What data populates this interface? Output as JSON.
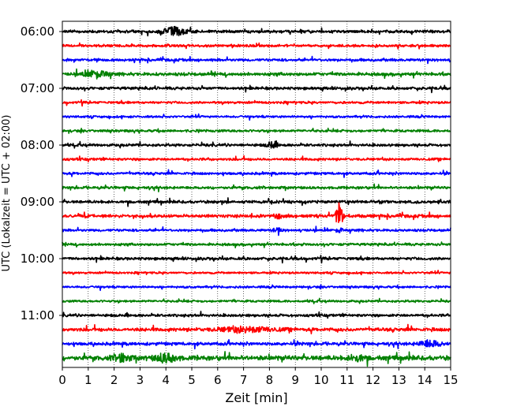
{
  "chart_data": {
    "type": "line",
    "subtype": "helicorder",
    "xlabel": "Zeit  [min]",
    "ylabel": "UTC (Lokalzeit = UTC + 02:00)",
    "xlim": [
      0,
      15
    ],
    "x_ticks": [
      0,
      1,
      2,
      3,
      4,
      5,
      6,
      7,
      8,
      9,
      10,
      11,
      12,
      13,
      14,
      15
    ],
    "x_tick_labels": [
      "0",
      "1",
      "2",
      "3",
      "4",
      "5",
      "6",
      "7",
      "8",
      "9",
      "10",
      "11",
      "12",
      "13",
      "14",
      "15"
    ],
    "y_tick_labels": [
      "06:00",
      "07:00",
      "08:00",
      "09:00",
      "10:00",
      "11:00"
    ],
    "traces_per_hour": 4,
    "minutes_per_trace": 15,
    "vertical_grid": "dotted",
    "trace_colors": [
      "#000000",
      "#ff0000",
      "#0000ff",
      "#008000"
    ],
    "trace_start_times": [
      "06:00",
      "06:15",
      "06:30",
      "06:45",
      "07:00",
      "07:15",
      "07:30",
      "07:45",
      "08:00",
      "08:15",
      "08:30",
      "08:45",
      "09:00",
      "09:15",
      "09:30",
      "09:45",
      "10:00",
      "10:15",
      "10:30",
      "10:45",
      "11:00",
      "11:15",
      "11:30",
      "11:45"
    ],
    "noise_level": [
      0.18,
      0.16,
      0.17,
      0.2,
      0.18,
      0.15,
      0.14,
      0.16,
      0.17,
      0.16,
      0.16,
      0.17,
      0.18,
      0.2,
      0.16,
      0.16,
      0.18,
      0.13,
      0.14,
      0.14,
      0.17,
      0.22,
      0.2,
      0.3
    ],
    "events": [
      {
        "trace": 0,
        "minute": 4.3,
        "amplitude": 0.6,
        "duration_min": 0.9
      },
      {
        "trace": 3,
        "minute": 1.3,
        "amplitude": 0.5,
        "duration_min": 0.9
      },
      {
        "trace": 8,
        "minute": 8.1,
        "amplitude": 0.45,
        "duration_min": 0.4
      },
      {
        "trace": 13,
        "minute": 10.7,
        "amplitude": 2.2,
        "duration_min": 0.25
      },
      {
        "trace": 13,
        "minute": 8.3,
        "amplitude": 0.35,
        "duration_min": 0.3
      },
      {
        "trace": 14,
        "minute": 10.7,
        "amplitude": 0.4,
        "duration_min": 0.2
      },
      {
        "trace": 14,
        "minute": 8.3,
        "amplitude": 0.4,
        "duration_min": 0.3
      },
      {
        "trace": 21,
        "minute": 7.1,
        "amplitude": 0.35,
        "duration_min": 2.2
      },
      {
        "trace": 22,
        "minute": 14.2,
        "amplitude": 0.5,
        "duration_min": 0.8
      },
      {
        "trace": 23,
        "minute": 2.3,
        "amplitude": 0.55,
        "duration_min": 0.6
      },
      {
        "trace": 23,
        "minute": 4.0,
        "amplitude": 0.6,
        "duration_min": 0.8
      },
      {
        "trace": 23,
        "minute": 11.4,
        "amplitude": 0.4,
        "duration_min": 0.6
      }
    ]
  }
}
